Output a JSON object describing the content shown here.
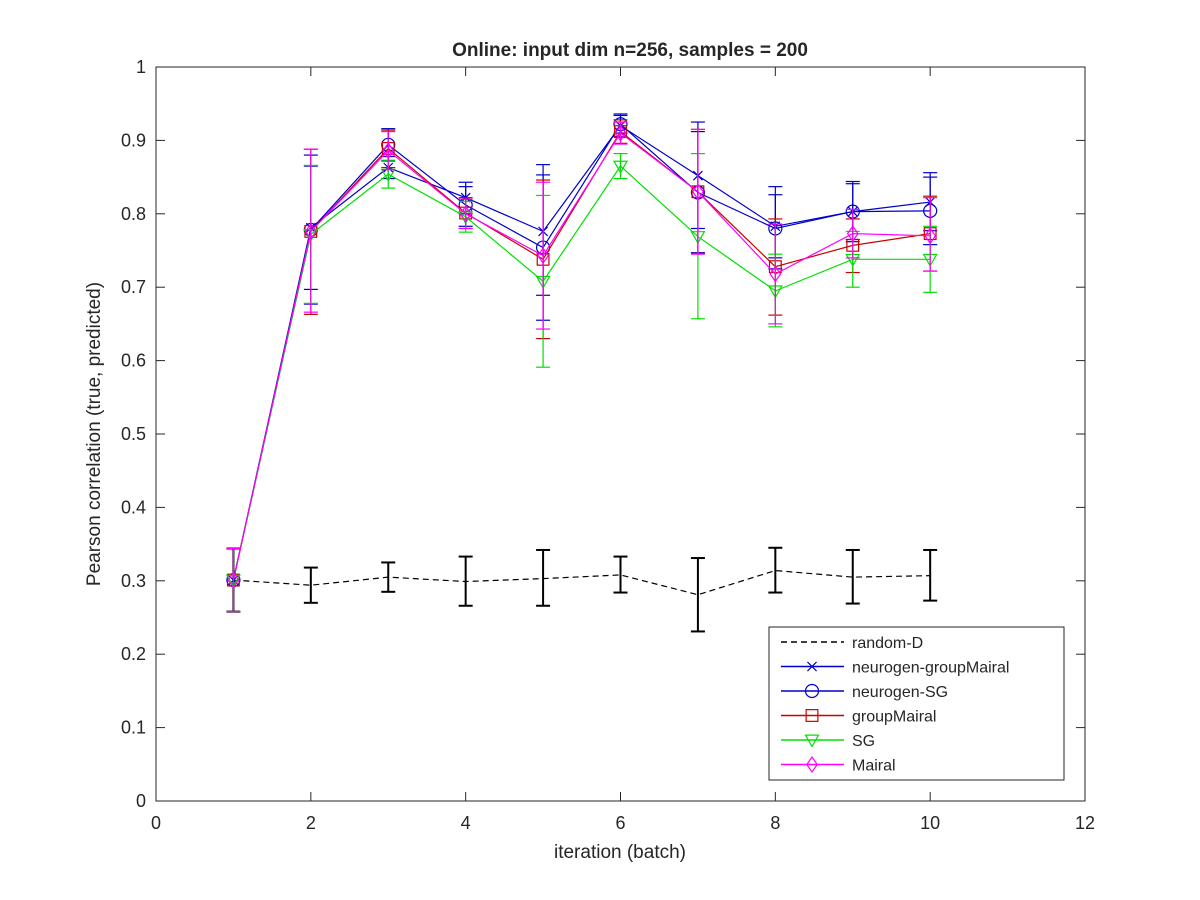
{
  "chart_data": {
    "type": "line",
    "title": "Online:  input dim n=256, samples = 200",
    "xlabel": "iteration (batch)",
    "ylabel": "Pearson correlation (true, predicted)",
    "xlim": [
      0,
      12
    ],
    "ylim": [
      0,
      1
    ],
    "xticks": [
      0,
      2,
      4,
      6,
      8,
      10,
      12
    ],
    "yticks": [
      0,
      0.1,
      0.2,
      0.3,
      0.4,
      0.5,
      0.6,
      0.7,
      0.8,
      0.9,
      1
    ],
    "x_tick_labels": [
      "0",
      "2",
      "4",
      "6",
      "8",
      "10",
      "12"
    ],
    "y_tick_labels": [
      "0",
      "0.1",
      "0.2",
      "0.3",
      "0.4",
      "0.5",
      "0.6",
      "0.7",
      "0.8",
      "0.9",
      "1"
    ],
    "grid": false,
    "legend_position": "bottom-right",
    "x": [
      1,
      2,
      3,
      4,
      5,
      6,
      7,
      8,
      9,
      10
    ],
    "series": [
      {
        "name": "random-D",
        "color": "#000000",
        "dash": "dashed",
        "marker": "none",
        "values": [
          0.301,
          0.294,
          0.305,
          0.299,
          0.303,
          0.308,
          0.281,
          0.314,
          0.305,
          0.307
        ],
        "err_low": [
          0.258,
          0.27,
          0.285,
          0.266,
          0.266,
          0.284,
          0.231,
          0.284,
          0.269,
          0.273
        ],
        "err_high": [
          0.344,
          0.318,
          0.325,
          0.333,
          0.342,
          0.333,
          0.331,
          0.345,
          0.342,
          0.342
        ]
      },
      {
        "name": "neurogen-groupMairal",
        "color": "#0000cc",
        "dash": "solid",
        "marker": "x",
        "values": [
          0.301,
          0.781,
          0.863,
          0.822,
          0.776,
          0.92,
          0.852,
          0.783,
          0.803,
          0.816
        ],
        "err_low": [
          0.301,
          0.697,
          0.848,
          0.8,
          0.689,
          0.905,
          0.78,
          0.74,
          0.762,
          0.777
        ],
        "err_high": [
          0.301,
          0.865,
          0.878,
          0.843,
          0.867,
          0.936,
          0.925,
          0.826,
          0.844,
          0.856
        ]
      },
      {
        "name": "neurogen-SG",
        "color": "#0000cc",
        "dash": "solid",
        "marker": "circle",
        "values": [
          0.301,
          0.778,
          0.894,
          0.812,
          0.754,
          0.922,
          0.829,
          0.78,
          0.803,
          0.804
        ],
        "err_low": [
          0.301,
          0.677,
          0.872,
          0.783,
          0.655,
          0.91,
          0.747,
          0.725,
          0.765,
          0.758
        ],
        "err_high": [
          0.301,
          0.88,
          0.916,
          0.837,
          0.853,
          0.934,
          0.912,
          0.837,
          0.841,
          0.85
        ]
      },
      {
        "name": "groupMairal",
        "color": "#cc0000",
        "dash": "solid",
        "marker": "square",
        "values": [
          0.301,
          0.776,
          0.889,
          0.801,
          0.738,
          0.912,
          0.83,
          0.728,
          0.757,
          0.773
        ],
        "err_low": [
          0.301,
          0.663,
          0.863,
          0.78,
          0.63,
          0.896,
          0.746,
          0.662,
          0.72,
          0.722
        ],
        "err_high": [
          0.301,
          0.888,
          0.914,
          0.822,
          0.846,
          0.928,
          0.915,
          0.793,
          0.793,
          0.824
        ]
      },
      {
        "name": "SG",
        "color": "#00e000",
        "dash": "solid",
        "marker": "triangle-down",
        "values": [
          0.301,
          0.772,
          0.854,
          0.796,
          0.708,
          0.865,
          0.769,
          0.695,
          0.738,
          0.738
        ],
        "err_low": [
          0.301,
          0.678,
          0.835,
          0.775,
          0.591,
          0.848,
          0.657,
          0.646,
          0.7,
          0.693
        ],
        "err_high": [
          0.301,
          0.866,
          0.873,
          0.817,
          0.825,
          0.882,
          0.882,
          0.745,
          0.776,
          0.783
        ]
      },
      {
        "name": "Mairal",
        "color": "#ff00ff",
        "dash": "solid",
        "marker": "diamond",
        "values": [
          0.301,
          0.776,
          0.886,
          0.8,
          0.743,
          0.91,
          0.83,
          0.718,
          0.773,
          0.77
        ],
        "err_low": [
          0.258,
          0.666,
          0.86,
          0.78,
          0.643,
          0.895,
          0.745,
          0.65,
          0.74,
          0.722
        ],
        "err_high": [
          0.344,
          0.888,
          0.912,
          0.82,
          0.843,
          0.925,
          0.915,
          0.786,
          0.806,
          0.822
        ]
      }
    ]
  }
}
